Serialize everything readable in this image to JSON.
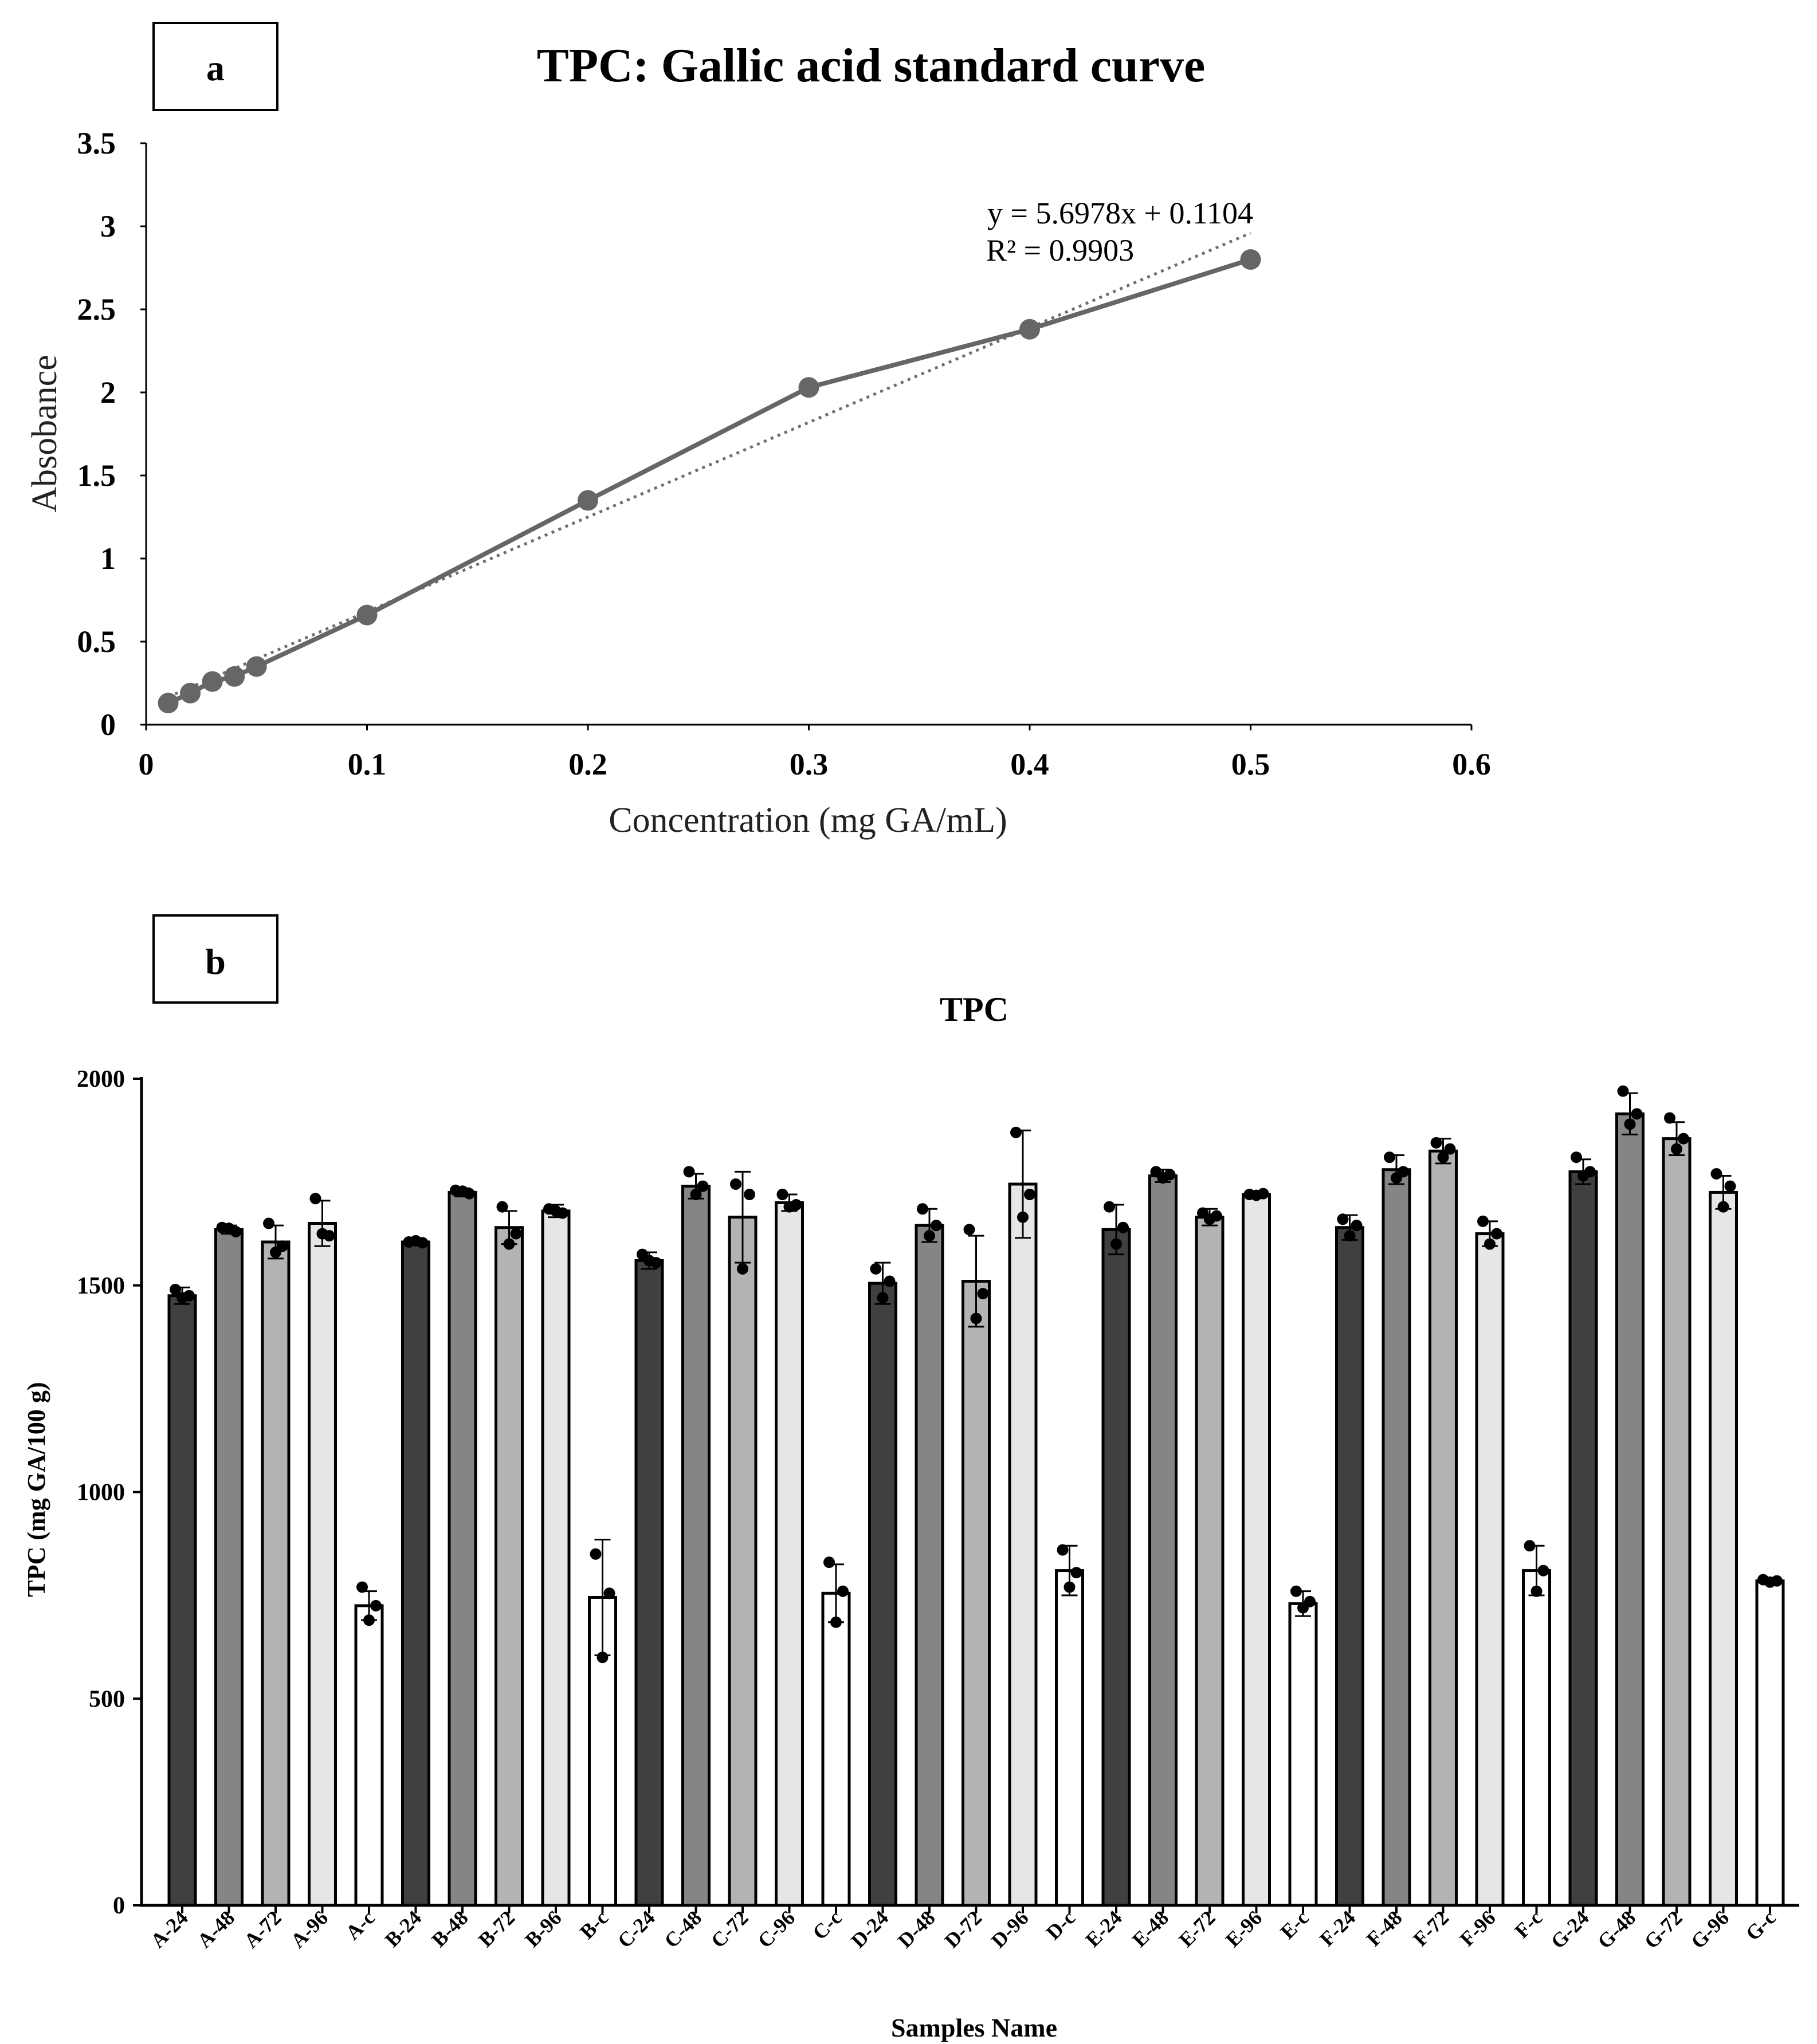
{
  "panel_a_label": "a",
  "panel_b_label": "b",
  "chart_data": [
    {
      "type": "line",
      "title": "TPC: Gallic acid standard curve",
      "xlabel": "Concentration (mg GA/mL)",
      "ylabel": "Absobance",
      "xlim": [
        0,
        0.6
      ],
      "ylim": [
        0,
        3.5
      ],
      "xticks": [
        "0",
        "0.1",
        "0.2",
        "0.3",
        "0.4",
        "0.5",
        "0.6"
      ],
      "yticks": [
        "0",
        "0.5",
        "1",
        "1.5",
        "2",
        "2.5",
        "3",
        "3.5"
      ],
      "series": [
        {
          "name": "Absorbance",
          "x": [
            0.01,
            0.02,
            0.03,
            0.04,
            0.05,
            0.1,
            0.2,
            0.3,
            0.4,
            0.5
          ],
          "y": [
            0.13,
            0.19,
            0.26,
            0.29,
            0.35,
            0.66,
            1.35,
            2.03,
            2.38,
            2.8
          ]
        }
      ],
      "trendline": {
        "slope": 5.6978,
        "intercept": 0.1104,
        "x_range": [
          0.01,
          0.5
        ]
      },
      "equation": "y = 5.6978x + 0.1104",
      "r2_label": "R² = 0.9903",
      "colors": {
        "series": "#666666",
        "trend": "#6e6e6e",
        "axis": "#000000"
      }
    },
    {
      "type": "bar",
      "title": "TPC",
      "xlabel": "Samples Name",
      "ylabel": "TPC (mg GA/100 g)",
      "ylim": [
        0,
        2000
      ],
      "yticks": [
        "0",
        "500",
        "1000",
        "1500",
        "2000"
      ],
      "categories": [
        "A-24",
        "A-48",
        "A-72",
        "A-96",
        "A-c",
        "B-24",
        "B-48",
        "B-72",
        "B-96",
        "B-c",
        "C-24",
        "C-48",
        "C-72",
        "C-96",
        "C-c",
        "D-24",
        "D-48",
        "D-72",
        "D-96",
        "D-c",
        "E-24",
        "E-48",
        "E-72",
        "E-96",
        "E-c",
        "F-24",
        "F-48",
        "F-72",
        "F-96",
        "F-c",
        "G-24",
        "G-48",
        "G-72",
        "G-96",
        "G-c"
      ],
      "values": [
        1475,
        1635,
        1605,
        1650,
        725,
        1605,
        1725,
        1640,
        1680,
        745,
        1560,
        1740,
        1665,
        1700,
        755,
        1505,
        1645,
        1510,
        1745,
        810,
        1635,
        1765,
        1665,
        1720,
        730,
        1640,
        1780,
        1825,
        1625,
        810,
        1775,
        1915,
        1855,
        1725,
        785
      ],
      "errors": [
        20,
        10,
        40,
        55,
        35,
        5,
        10,
        40,
        15,
        140,
        20,
        30,
        110,
        20,
        70,
        50,
        40,
        110,
        130,
        60,
        60,
        15,
        20,
        5,
        30,
        30,
        35,
        30,
        30,
        60,
        30,
        50,
        40,
        40,
        5
      ],
      "points": [
        [
          1490,
          1475,
          1470
        ],
        [
          1640,
          1630,
          1638
        ],
        [
          1650,
          1595,
          1580
        ],
        [
          1710,
          1620,
          1625
        ],
        [
          770,
          725,
          690
        ],
        [
          1605,
          1603,
          1608
        ],
        [
          1730,
          1722,
          1728
        ],
        [
          1690,
          1625,
          1600
        ],
        [
          1685,
          1675,
          1680
        ],
        [
          850,
          755,
          600
        ],
        [
          1575,
          1555,
          1560
        ],
        [
          1775,
          1740,
          1720
        ],
        [
          1745,
          1720,
          1540
        ],
        [
          1720,
          1695,
          1690
        ],
        [
          830,
          760,
          685
        ],
        [
          1540,
          1510,
          1470
        ],
        [
          1685,
          1645,
          1620
        ],
        [
          1635,
          1480,
          1420
        ],
        [
          1870,
          1720,
          1665
        ],
        [
          860,
          805,
          770
        ],
        [
          1690,
          1640,
          1600
        ],
        [
          1775,
          1768,
          1760
        ],
        [
          1675,
          1668,
          1660
        ],
        [
          1720,
          1722,
          1718
        ],
        [
          760,
          735,
          720
        ],
        [
          1660,
          1645,
          1620
        ],
        [
          1810,
          1775,
          1760
        ],
        [
          1845,
          1830,
          1810
        ],
        [
          1655,
          1625,
          1600
        ],
        [
          870,
          810,
          760
        ],
        [
          1810,
          1775,
          1765
        ],
        [
          1970,
          1915,
          1890
        ],
        [
          1905,
          1855,
          1830
        ],
        [
          1770,
          1740,
          1690
        ],
        [
          788,
          785,
          782
        ]
      ],
      "colors": {
        "24": "#404040",
        "48": "#858585",
        "72": "#b3b3b3",
        "96": "#e6e6e6",
        "c": "#ffffff",
        "edge": "#000000"
      }
    }
  ]
}
